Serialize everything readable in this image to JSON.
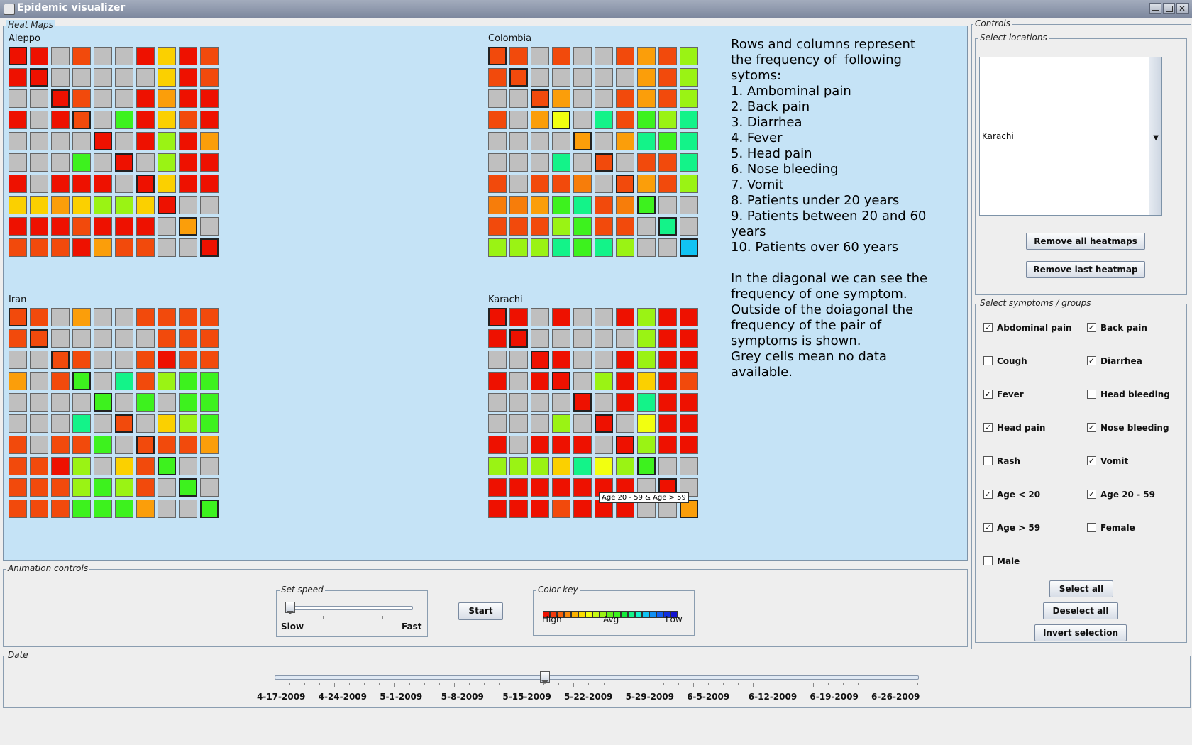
{
  "window": {
    "title": "Epidemic visualizer"
  },
  "heatmaps_panel": {
    "label": "Heat Maps"
  },
  "palette": {
    "R": "#ee1100",
    "r": "#f24a0c",
    "O": "#f77d0a",
    "o": "#fb9e0a",
    "Y": "#fbd000",
    "y": "#f2ff10",
    "L": "#9af314",
    "G": "#3df21e",
    "g": "#13ec3a",
    "T": "#13f389",
    "C": "#11c3f3",
    "X": "#bfbfbf"
  },
  "heatmaps": [
    {
      "name": "Aleppo",
      "rows": [
        "RRXrXXRYRr",
        "RRXXXXXYRr",
        "XXRrXXRoRR",
        "RXRrXGRYrR",
        "XXXXRXRLRo",
        "XXXGXRXLRR",
        "RXRRRXRYRR",
        "YYoYLLYRXX",
        "RRRrRRRXoX",
        "rrrRorrXXR"
      ]
    },
    {
      "name": "Colombia",
      "rows": [
        "rrXrXXrorL",
        "rrXXXXXorL",
        "XXroXXrorL",
        "rXoyXTrGLT",
        "XXXXoXoTGT",
        "XXXTXrXrrT",
        "rXrrOXrorL",
        "OOoGTrOGXX",
        "rrrLGrrXTX",
        "LLLTGTLXXC"
      ]
    },
    {
      "name": "Iran",
      "rows": [
        "rrXoXXrrrr",
        "rrXXXXXrrr",
        "XXrrXXrRrr",
        "oXrGXTrLGG",
        "XXXXGXGXGG",
        "XXXTXrXYLG",
        "rXrrGXrrro",
        "rrRLXYrGXX",
        "rrrLGLrXGX",
        "rrrGGGoXXG"
      ]
    },
    {
      "name": "Karachi",
      "rows": [
        "RRXRXXRLRR",
        "RRXXXXXLRR",
        "XXRRXXRLRR",
        "RXRRXLRYRr",
        "XXXXRXRTRR",
        "XXXLXRXyRR",
        "RXRRRXRLRR",
        "LLLYTyLGXX",
        "RRRRRRRXRX",
        "RRRrRRRXXo"
      ]
    }
  ],
  "explanation": {
    "lines": [
      "Rows and columns represent the frequency of  following sytoms:",
      "1. Ambominal pain",
      "2. Back pain",
      "3. Diarrhea",
      "4. Fever",
      "5. Head pain",
      "6. Nose bleeding",
      "7. Vomit",
      "8. Patients under 20 years",
      "9. Patients between 20 and 60 years",
      "10. Patients over 60 years",
      "",
      "In the diagonal we can see the frequency of one symptom. Outside of the doiagonal the frequency of the pair of symptoms is shown.",
      "Grey cells mean no data available."
    ]
  },
  "tooltip": "Age 20 - 59 & Age > 59",
  "controls": {
    "label": "Controls",
    "locations": {
      "label": "Select locations",
      "selected": "Karachi",
      "remove_all": "Remove all heatmaps",
      "remove_last": "Remove last heatmap"
    },
    "symptoms": {
      "label": "Select symptoms / groups",
      "items": [
        {
          "label": "Abdominal pain",
          "checked": true
        },
        {
          "label": "Back pain",
          "checked": true
        },
        {
          "label": "Cough",
          "checked": false
        },
        {
          "label": "Diarrhea",
          "checked": true
        },
        {
          "label": "Fever",
          "checked": true
        },
        {
          "label": "Head bleeding",
          "checked": false
        },
        {
          "label": "Head pain",
          "checked": true
        },
        {
          "label": "Nose bleeding",
          "checked": true
        },
        {
          "label": "Rash",
          "checked": false
        },
        {
          "label": "Vomit",
          "checked": true
        },
        {
          "label": "Age < 20",
          "checked": true
        },
        {
          "label": "Age 20 - 59",
          "checked": true
        },
        {
          "label": "Age > 59",
          "checked": true
        },
        {
          "label": "Female",
          "checked": false
        },
        {
          "label": "Male",
          "checked": false
        }
      ],
      "select_all": "Select all",
      "deselect_all": "Deselect all",
      "invert": "Invert selection"
    }
  },
  "animation": {
    "label": "Animation controls",
    "speed": {
      "label": "Set speed",
      "slow": "Slow",
      "fast": "Fast",
      "value": 0.0
    },
    "start": "Start",
    "color_key": {
      "label": "Color key",
      "high": "High",
      "avg": "Avg",
      "low": "Low",
      "colors": [
        "#ee1100",
        "#f23a0c",
        "#f7620a",
        "#fb8a0a",
        "#fbb000",
        "#fbdd00",
        "#f2ff10",
        "#c8fb14",
        "#9af314",
        "#60f01a",
        "#3df21e",
        "#13ec3a",
        "#13f389",
        "#13f3c8",
        "#11c3f3",
        "#1190f3",
        "#1160f3",
        "#1130e0",
        "#1111d0"
      ]
    }
  },
  "date": {
    "label": "Date",
    "value_fraction": 0.42,
    "ticks": [
      "4-17-2009",
      "4-24-2009",
      "5-1-2009",
      "5-8-2009",
      "5-15-2009",
      "5-22-2009",
      "5-29-2009",
      "6-5-2009",
      "6-12-2009",
      "6-19-2009",
      "6-26-2009"
    ]
  }
}
